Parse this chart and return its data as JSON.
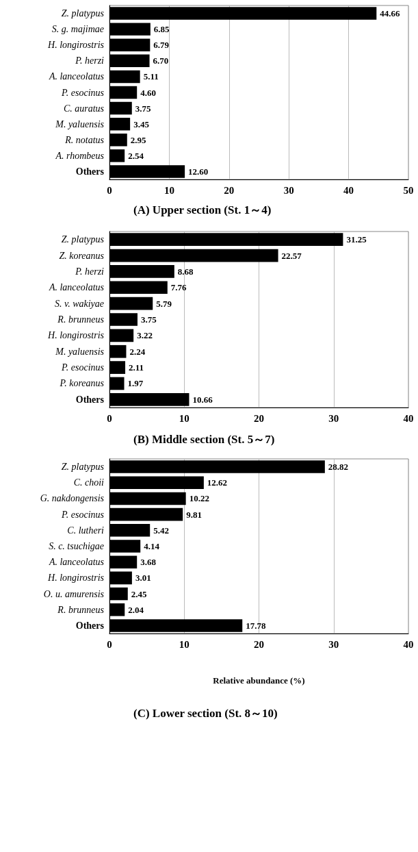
{
  "chart_data": [
    {
      "type": "bar",
      "orientation": "horizontal",
      "title": "(A) Upper section (St. 1～4)",
      "categories": [
        "Z. platypus",
        "S. g. majimae",
        "H. longirostris",
        "P. herzi",
        "A. lanceolatus",
        "P. esocinus",
        "C. auratus",
        "M. yaluensis",
        "R. notatus",
        "A. rhombeus",
        "Others"
      ],
      "values": [
        44.66,
        6.85,
        6.79,
        6.7,
        5.11,
        4.6,
        3.75,
        3.45,
        2.95,
        2.54,
        12.6
      ],
      "value_labels": [
        "44.66",
        "6.85",
        "6.79",
        "6.70",
        "5.11",
        "4.60",
        "3.75",
        "3.45",
        "2.95",
        "2.54",
        "12.60"
      ],
      "color": "#000000",
      "xlim": [
        0,
        50
      ],
      "xticks": [
        0,
        10,
        20,
        30,
        40,
        50
      ],
      "grid": "x"
    },
    {
      "type": "bar",
      "orientation": "horizontal",
      "title": "(B) Middle section (St. 5～7)",
      "categories": [
        "Z. platypus",
        "Z. koreanus",
        "P. herzi",
        "A. lanceolatus",
        "S. v. wakiyae",
        "R. brunneus",
        "H. longirostris",
        "M. yaluensis",
        "P. esocinus",
        "P. koreanus",
        "Others"
      ],
      "values": [
        31.25,
        22.57,
        8.68,
        7.76,
        5.79,
        3.75,
        3.22,
        2.24,
        2.11,
        1.97,
        10.66
      ],
      "value_labels": [
        "31.25",
        "22.57",
        "8.68",
        "7.76",
        "5.79",
        "3.75",
        "3.22",
        "2.24",
        "2.11",
        "1.97",
        "10.66"
      ],
      "color": "#000000",
      "xlim": [
        0,
        40
      ],
      "xticks": [
        0,
        10,
        20,
        30,
        40
      ],
      "grid": "x"
    },
    {
      "type": "bar",
      "orientation": "horizontal",
      "title": "(C) Lower section (St. 8～10)",
      "xlabel": "Relative abundance (%)",
      "categories": [
        "Z. platypus",
        "C. choii",
        "G. nakdongensis",
        "P. esocinus",
        "C. lutheri",
        "S. c. tsuchigae",
        "A. lanceolatus",
        "H. longirostris",
        "O. u. amurensis",
        "R. brunneus",
        "Others"
      ],
      "values": [
        28.82,
        12.62,
        10.22,
        9.81,
        5.42,
        4.14,
        3.68,
        3.01,
        2.45,
        2.04,
        17.78
      ],
      "value_labels": [
        "28.82",
        "12.62",
        "10.22",
        "9.81",
        "5.42",
        "4.14",
        "3.68",
        "3.01",
        "2.45",
        "2.04",
        "17.78"
      ],
      "color": "#000000",
      "xlim": [
        0,
        40
      ],
      "xticks": [
        0,
        10,
        20,
        30,
        40
      ],
      "grid": "x"
    }
  ]
}
